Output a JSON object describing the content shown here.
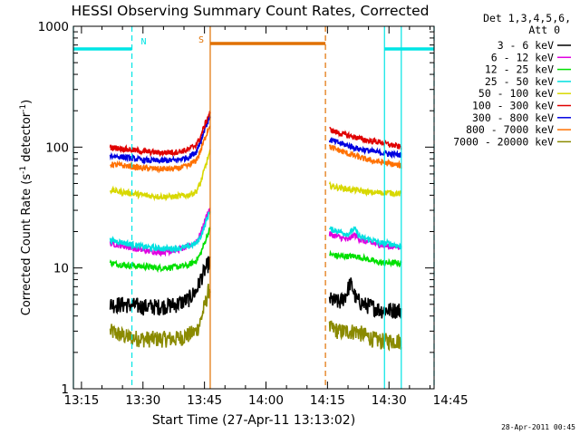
{
  "chart_data": {
    "type": "line",
    "title": "HESSI Observing Summary Count Rates, Corrected",
    "xlabel": "Start Time (27-Apr-11 13:13:02)",
    "ylabel_parts": [
      "Corrected Count Rate (s",
      "-1",
      " detector",
      "-1",
      ")"
    ],
    "y_scale": "log",
    "xlim_minutes": [
      13.033,
      101.0
    ],
    "ylim": [
      1,
      1000
    ],
    "x_tick_labels": [
      "13:15",
      "13:30",
      "13:45",
      "14:00",
      "14:15",
      "14:30",
      "14:45"
    ],
    "x_tick_minutes": [
      15,
      30,
      45,
      60,
      75,
      90,
      105
    ],
    "y_tick_labels": [
      "1",
      "10",
      "100",
      "1000"
    ],
    "y_tick_values": [
      1,
      10,
      100,
      1000
    ],
    "legend_header": [
      "Det 1,3,4,5,6,",
      "Att 0"
    ],
    "legend_position": "right",
    "timestamp": "28-Apr-2011 00:45",
    "flags": [
      {
        "label": "N",
        "color": "#00e5e5"
      },
      {
        "label": "S",
        "color": "#e07000"
      }
    ],
    "flag_bars": [
      {
        "color": "#00e5e5",
        "start": 13.033,
        "end": 27.3,
        "y": 650
      },
      {
        "color": "#e07000",
        "start": 46.4,
        "end": 74.5,
        "y": 720
      },
      {
        "color": "#00e5e5",
        "start": 88.9,
        "end": 101.0,
        "y": 650
      }
    ],
    "vlines": [
      {
        "x": 13.033,
        "color": "#00e5e5",
        "dash": false
      },
      {
        "x": 27.3,
        "color": "#00e5e5",
        "dash": true
      },
      {
        "x": 46.4,
        "color": "#e07000",
        "dash": false
      },
      {
        "x": 74.5,
        "color": "#e07000",
        "dash": true
      },
      {
        "x": 88.9,
        "color": "#00e5e5",
        "dash": false
      },
      {
        "x": 93.0,
        "color": "#00e5e5",
        "dash": false
      },
      {
        "x": 101.0,
        "color": "#00e5e5",
        "dash": true
      }
    ],
    "segments": [
      [
        22.0,
        46.4
      ],
      [
        75.5,
        93.0
      ]
    ],
    "series": [
      {
        "name": "3 - 6 keV",
        "color": "#000000",
        "seg1": [
          [
            22,
            5
          ],
          [
            26,
            5
          ],
          [
            30,
            4.8
          ],
          [
            34,
            4.8
          ],
          [
            38,
            5
          ],
          [
            41,
            5.5
          ],
          [
            43,
            6.5
          ],
          [
            44,
            8
          ],
          [
            45,
            9.5
          ],
          [
            46,
            11
          ],
          [
            46.4,
            11
          ]
        ],
        "seg2": [
          [
            75.5,
            5.5
          ],
          [
            78,
            5.2
          ],
          [
            79.5,
            6
          ],
          [
            80.5,
            7.5
          ],
          [
            81,
            7
          ],
          [
            82,
            5.5
          ],
          [
            84,
            5
          ],
          [
            86,
            4.8
          ],
          [
            88,
            4.5
          ],
          [
            90,
            4.5
          ],
          [
            93,
            4.5
          ]
        ]
      },
      {
        "name": "6 - 12 keV",
        "color": "#e000e0",
        "seg1": [
          [
            22,
            16
          ],
          [
            26,
            15
          ],
          [
            30,
            14
          ],
          [
            34,
            13.5
          ],
          [
            38,
            14
          ],
          [
            41,
            15
          ],
          [
            43,
            16.5
          ],
          [
            44,
            19
          ],
          [
            45,
            24
          ],
          [
            46,
            30
          ],
          [
            46.4,
            30
          ]
        ],
        "seg2": [
          [
            75.5,
            19
          ],
          [
            78,
            18
          ],
          [
            80,
            17
          ],
          [
            81.5,
            19
          ],
          [
            83,
            17
          ],
          [
            86,
            16
          ],
          [
            88,
            15.5
          ],
          [
            90,
            15
          ],
          [
            93,
            15
          ]
        ]
      },
      {
        "name": "12 - 25 keV",
        "color": "#00e000",
        "seg1": [
          [
            22,
            11
          ],
          [
            26,
            10.5
          ],
          [
            30,
            10.3
          ],
          [
            34,
            10
          ],
          [
            38,
            10.2
          ],
          [
            41,
            10.5
          ],
          [
            43,
            11.5
          ],
          [
            44,
            13
          ],
          [
            45,
            16
          ],
          [
            46,
            20
          ],
          [
            46.4,
            21
          ]
        ],
        "seg2": [
          [
            75.5,
            13
          ],
          [
            78,
            12.5
          ],
          [
            80,
            12.5
          ],
          [
            82,
            12.5
          ],
          [
            84,
            12
          ],
          [
            86,
            11.5
          ],
          [
            88,
            11
          ],
          [
            90,
            11
          ],
          [
            93,
            11
          ]
        ]
      },
      {
        "name": "25 - 50 keV",
        "color": "#00e0e0",
        "seg1": [
          [
            22,
            17
          ],
          [
            26,
            16
          ],
          [
            30,
            15
          ],
          [
            34,
            14.5
          ],
          [
            38,
            14.5
          ],
          [
            41,
            15
          ],
          [
            43,
            16
          ],
          [
            44,
            18
          ],
          [
            45,
            22
          ],
          [
            46,
            28
          ],
          [
            46.4,
            30
          ]
        ],
        "seg2": [
          [
            75.5,
            21
          ],
          [
            78,
            20
          ],
          [
            80,
            19
          ],
          [
            81.5,
            21
          ],
          [
            83,
            18
          ],
          [
            86,
            17
          ],
          [
            88,
            16
          ],
          [
            90,
            16
          ],
          [
            93,
            15
          ]
        ]
      },
      {
        "name": "50 - 100 keV",
        "color": "#d8d800",
        "seg1": [
          [
            22,
            44
          ],
          [
            26,
            42
          ],
          [
            30,
            40
          ],
          [
            34,
            39
          ],
          [
            38,
            39
          ],
          [
            41,
            40
          ],
          [
            43,
            43
          ],
          [
            44,
            50
          ],
          [
            45,
            65
          ],
          [
            46,
            85
          ],
          [
            46.4,
            90
          ]
        ],
        "seg2": [
          [
            75.5,
            48
          ],
          [
            78,
            46
          ],
          [
            80,
            45
          ],
          [
            82,
            44
          ],
          [
            84,
            43
          ],
          [
            86,
            42
          ],
          [
            88,
            42
          ],
          [
            90,
            42
          ],
          [
            93,
            41
          ]
        ]
      },
      {
        "name": "100 - 300 keV",
        "color": "#e00000",
        "seg1": [
          [
            22,
            100
          ],
          [
            26,
            96
          ],
          [
            30,
            92
          ],
          [
            34,
            90
          ],
          [
            38,
            91
          ],
          [
            41,
            95
          ],
          [
            43,
            105
          ],
          [
            44,
            120
          ],
          [
            45,
            150
          ],
          [
            46,
            185
          ],
          [
            46.4,
            195
          ]
        ],
        "seg2": [
          [
            75.5,
            140
          ],
          [
            78,
            130
          ],
          [
            80,
            125
          ],
          [
            82,
            120
          ],
          [
            84,
            115
          ],
          [
            86,
            112
          ],
          [
            88,
            110
          ],
          [
            90,
            105
          ],
          [
            93,
            100
          ]
        ]
      },
      {
        "name": "300 - 800 keV",
        "color": "#0000e0",
        "seg1": [
          [
            22,
            85
          ],
          [
            26,
            82
          ],
          [
            30,
            78
          ],
          [
            34,
            77
          ],
          [
            38,
            78
          ],
          [
            41,
            82
          ],
          [
            43,
            92
          ],
          [
            44,
            110
          ],
          [
            45,
            140
          ],
          [
            46,
            170
          ],
          [
            46.4,
            180
          ]
        ],
        "seg2": [
          [
            75.5,
            115
          ],
          [
            78,
            108
          ],
          [
            80,
            103
          ],
          [
            82,
            98
          ],
          [
            84,
            95
          ],
          [
            86,
            92
          ],
          [
            88,
            90
          ],
          [
            90,
            88
          ],
          [
            93,
            86
          ]
        ]
      },
      {
        "name": "800 - 7000 keV",
        "color": "#ff7000",
        "seg1": [
          [
            22,
            72
          ],
          [
            26,
            70
          ],
          [
            30,
            67
          ],
          [
            34,
            66
          ],
          [
            38,
            66
          ],
          [
            41,
            70
          ],
          [
            43,
            78
          ],
          [
            44,
            92
          ],
          [
            45,
            115
          ],
          [
            46,
            145
          ],
          [
            46.4,
            155
          ]
        ],
        "seg2": [
          [
            75.5,
            100
          ],
          [
            78,
            94
          ],
          [
            80,
            88
          ],
          [
            82,
            84
          ],
          [
            84,
            80
          ],
          [
            86,
            77
          ],
          [
            88,
            75
          ],
          [
            90,
            73
          ],
          [
            93,
            70
          ]
        ]
      },
      {
        "name": "7000 - 20000 keV",
        "color": "#8a8a00",
        "seg1": [
          [
            22,
            3
          ],
          [
            26,
            2.7
          ],
          [
            30,
            2.6
          ],
          [
            34,
            2.6
          ],
          [
            38,
            2.6
          ],
          [
            41,
            2.8
          ],
          [
            43,
            3
          ],
          [
            44,
            3.6
          ],
          [
            45,
            4.8
          ],
          [
            46,
            6.5
          ],
          [
            46.4,
            7
          ]
        ],
        "seg2": [
          [
            75.5,
            3.2
          ],
          [
            78,
            3.0
          ],
          [
            80,
            3.0
          ],
          [
            82,
            3.0
          ],
          [
            84,
            2.8
          ],
          [
            86,
            2.6
          ],
          [
            88,
            2.5
          ],
          [
            90,
            2.5
          ],
          [
            93,
            2.5
          ]
        ]
      }
    ]
  }
}
